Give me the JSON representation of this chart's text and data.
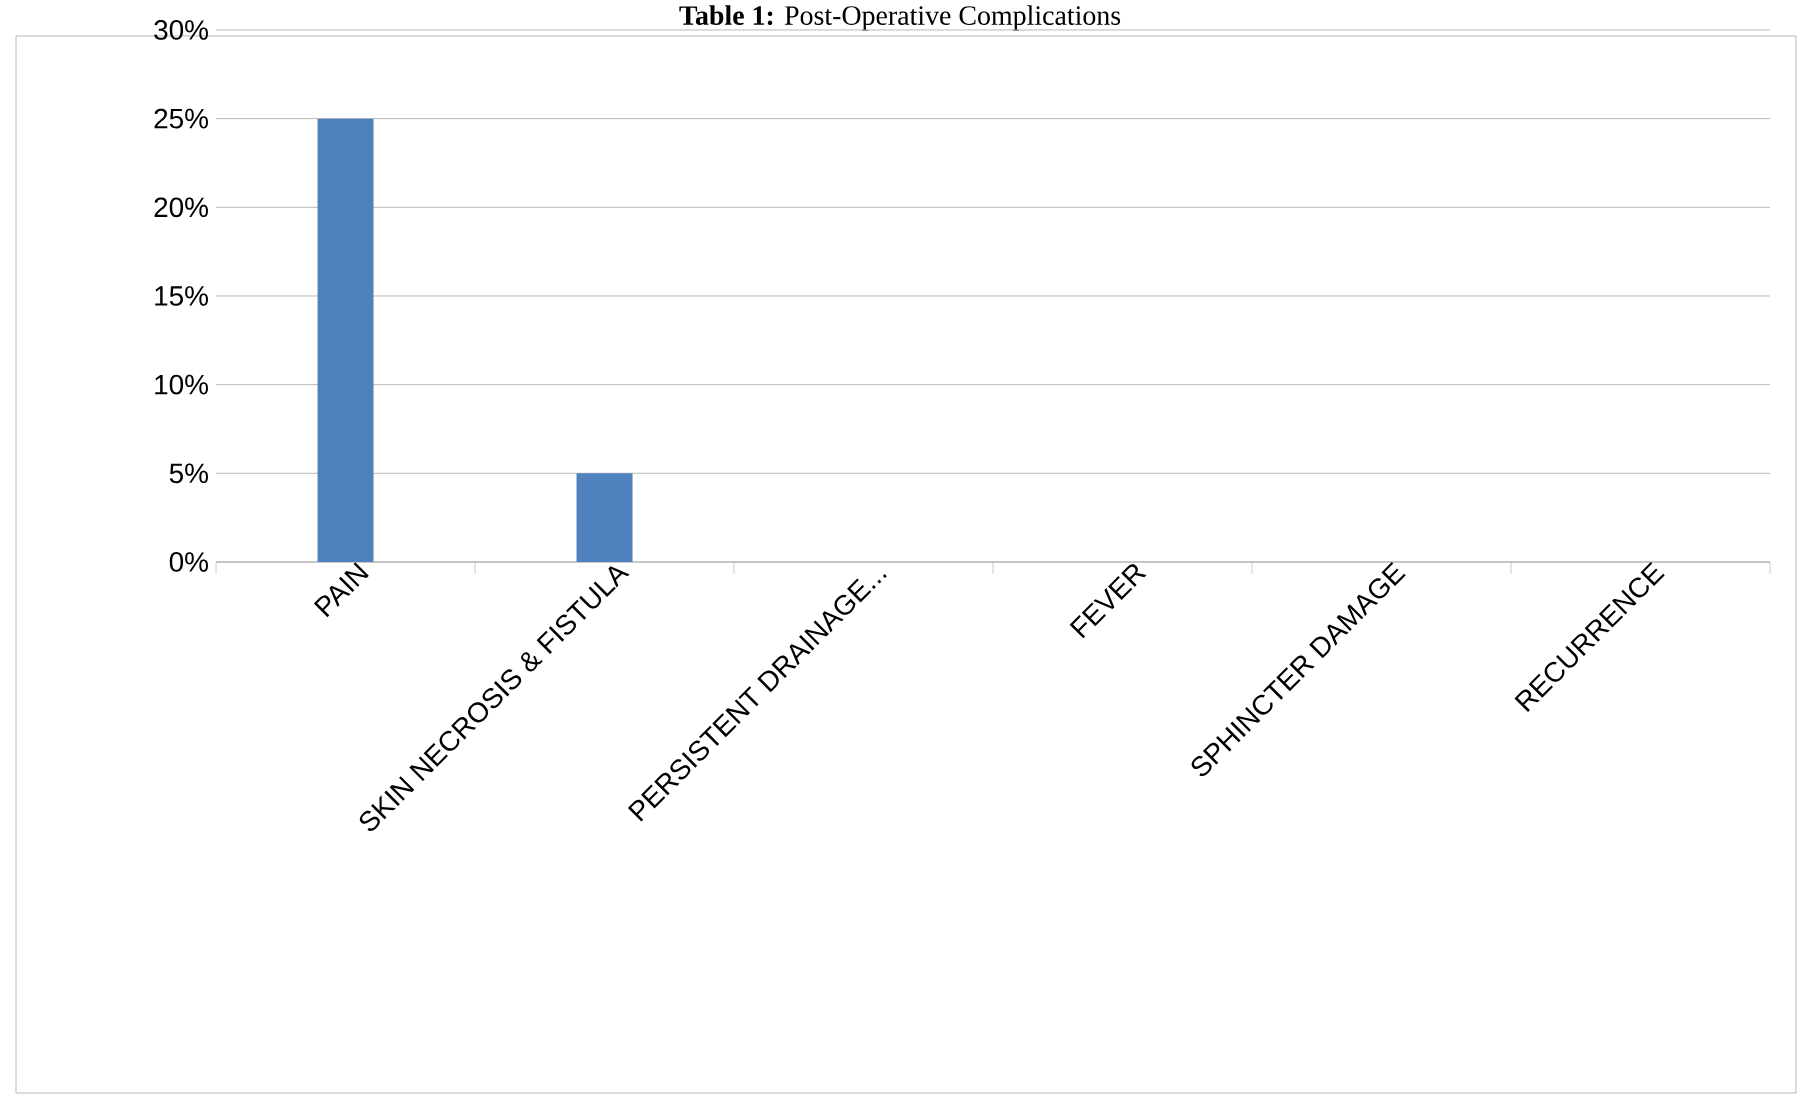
{
  "chart_data": {
    "type": "bar",
    "title": "**Table 1:** Post-Operative Complications",
    "categories": [
      "PAIN",
      "SKIN NECROSIS & FISTULA",
      "PERSISTENT DRAINAGE...",
      "FEVER",
      "SPHINCTER DAMAGE",
      "RECURRENCE"
    ],
    "values": [
      25,
      5,
      0,
      0,
      0,
      0
    ],
    "color": "#4f81bd",
    "ylim": [
      0,
      30
    ],
    "yticks": [
      {
        "value": 0,
        "label": "0%"
      },
      {
        "value": 5,
        "label": "5%"
      },
      {
        "value": 10,
        "label": "10%"
      },
      {
        "value": 15,
        "label": "15%"
      },
      {
        "value": 20,
        "label": "20%"
      },
      {
        "value": 25,
        "label": "25%"
      },
      {
        "value": 30,
        "label": "30%"
      }
    ],
    "grid": "y"
  }
}
